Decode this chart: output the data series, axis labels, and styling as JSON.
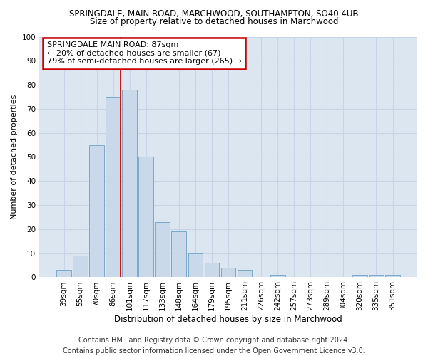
{
  "title": "SPRINGDALE, MAIN ROAD, MARCHWOOD, SOUTHAMPTON, SO40 4UB",
  "subtitle": "Size of property relative to detached houses in Marchwood",
  "xlabel": "Distribution of detached houses by size in Marchwood",
  "ylabel": "Number of detached properties",
  "categories": [
    "39sqm",
    "55sqm",
    "70sqm",
    "86sqm",
    "101sqm",
    "117sqm",
    "133sqm",
    "148sqm",
    "164sqm",
    "179sqm",
    "195sqm",
    "211sqm",
    "226sqm",
    "242sqm",
    "257sqm",
    "273sqm",
    "289sqm",
    "304sqm",
    "320sqm",
    "335sqm",
    "351sqm"
  ],
  "values": [
    3,
    9,
    55,
    75,
    78,
    50,
    23,
    19,
    10,
    6,
    4,
    3,
    0,
    1,
    0,
    0,
    0,
    0,
    1,
    1,
    1
  ],
  "bar_color": "#c9d9ea",
  "bar_edge_color": "#7aaac8",
  "vline_x_index": 3,
  "vline_color": "#cc0000",
  "annotation_title": "SPRINGDALE MAIN ROAD: 87sqm",
  "annotation_line1": "← 20% of detached houses are smaller (67)",
  "annotation_line2": "79% of semi-detached houses are larger (265) →",
  "annotation_box_color": "#cc0000",
  "ylim": [
    0,
    100
  ],
  "yticks": [
    0,
    10,
    20,
    30,
    40,
    50,
    60,
    70,
    80,
    90,
    100
  ],
  "grid_color": "#c8d4e8",
  "bg_color": "#dce6f0",
  "footer_line1": "Contains HM Land Registry data © Crown copyright and database right 2024.",
  "footer_line2": "Contains public sector information licensed under the Open Government Licence v3.0.",
  "title_fontsize": 8.5,
  "subtitle_fontsize": 8.5,
  "xlabel_fontsize": 8.5,
  "ylabel_fontsize": 8,
  "tick_fontsize": 7.5,
  "annotation_fontsize": 8,
  "footer_fontsize": 7
}
